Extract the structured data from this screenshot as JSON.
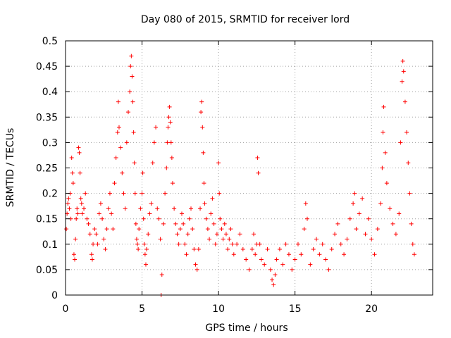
{
  "chart_data": {
    "type": "scatter",
    "title": "Day 080 of 2015, SRMTID for receiver lord",
    "xlabel": "GPS time / hours",
    "ylabel": "SRMTID / TECUs",
    "xlim": [
      0,
      24
    ],
    "ylim": [
      0,
      0.5
    ],
    "xticks": [
      0,
      5,
      10,
      15,
      20
    ],
    "xtick_labels": [
      "0",
      "5",
      "10",
      "15",
      "20"
    ],
    "yticks": [
      0,
      0.05,
      0.1,
      0.15,
      0.2,
      0.25,
      0.3,
      0.35,
      0.4,
      0.45,
      0.5
    ],
    "ytick_labels": [
      "0",
      "0.05",
      "0.1",
      "0.15",
      "0.2",
      "0.25",
      "0.3",
      "0.35",
      "0.4",
      "0.45",
      "0.5"
    ],
    "grid": true,
    "marker": "+",
    "color": "#ff0000",
    "series": [
      {
        "name": "SRMTID",
        "points": [
          [
            0.05,
            0.13
          ],
          [
            0.1,
            0.16
          ],
          [
            0.15,
            0.18
          ],
          [
            0.2,
            0.19
          ],
          [
            0.25,
            0.17
          ],
          [
            0.3,
            0.2
          ],
          [
            0.35,
            0.15
          ],
          [
            0.4,
            0.27
          ],
          [
            0.45,
            0.24
          ],
          [
            0.5,
            0.22
          ],
          [
            0.55,
            0.08
          ],
          [
            0.6,
            0.07
          ],
          [
            0.65,
            0.11
          ],
          [
            0.7,
            0.15
          ],
          [
            0.75,
            0.17
          ],
          [
            0.8,
            0.16
          ],
          [
            0.85,
            0.29
          ],
          [
            0.9,
            0.28
          ],
          [
            0.95,
            0.24
          ],
          [
            1.0,
            0.19
          ],
          [
            1.05,
            0.18
          ],
          [
            1.1,
            0.16
          ],
          [
            1.2,
            0.17
          ],
          [
            1.3,
            0.2
          ],
          [
            1.4,
            0.15
          ],
          [
            1.5,
            0.14
          ],
          [
            1.6,
            0.12
          ],
          [
            1.7,
            0.08
          ],
          [
            1.75,
            0.07
          ],
          [
            1.8,
            0.1
          ],
          [
            1.9,
            0.13
          ],
          [
            2.0,
            0.12
          ],
          [
            2.1,
            0.1
          ],
          [
            2.2,
            0.16
          ],
          [
            2.3,
            0.18
          ],
          [
            2.4,
            0.15
          ],
          [
            2.5,
            0.11
          ],
          [
            2.6,
            0.09
          ],
          [
            2.7,
            0.13
          ],
          [
            2.8,
            0.17
          ],
          [
            2.9,
            0.2
          ],
          [
            3.0,
            0.16
          ],
          [
            3.1,
            0.13
          ],
          [
            3.2,
            0.22
          ],
          [
            3.3,
            0.27
          ],
          [
            3.4,
            0.32
          ],
          [
            3.45,
            0.38
          ],
          [
            3.5,
            0.33
          ],
          [
            3.6,
            0.29
          ],
          [
            3.7,
            0.24
          ],
          [
            3.8,
            0.2
          ],
          [
            3.9,
            0.17
          ],
          [
            4.0,
            0.3
          ],
          [
            4.1,
            0.36
          ],
          [
            4.2,
            0.4
          ],
          [
            4.25,
            0.45
          ],
          [
            4.3,
            0.47
          ],
          [
            4.35,
            0.43
          ],
          [
            4.4,
            0.38
          ],
          [
            4.45,
            0.32
          ],
          [
            4.5,
            0.26
          ],
          [
            4.55,
            0.2
          ],
          [
            4.6,
            0.14
          ],
          [
            4.65,
            0.11
          ],
          [
            4.7,
            0.1
          ],
          [
            4.75,
            0.09
          ],
          [
            4.8,
            0.13
          ],
          [
            4.9,
            0.17
          ],
          [
            5.0,
            0.2
          ],
          [
            5.05,
            0.24
          ],
          [
            5.1,
            0.15
          ],
          [
            5.15,
            0.1
          ],
          [
            5.2,
            0.08
          ],
          [
            5.25,
            0.06
          ],
          [
            5.3,
            0.09
          ],
          [
            5.4,
            0.12
          ],
          [
            5.5,
            0.16
          ],
          [
            5.6,
            0.18
          ],
          [
            5.7,
            0.26
          ],
          [
            5.8,
            0.3
          ],
          [
            5.9,
            0.33
          ],
          [
            6.0,
            0.17
          ],
          [
            6.1,
            0.15
          ],
          [
            6.2,
            0.11
          ],
          [
            6.25,
            0.0
          ],
          [
            6.3,
            0.04
          ],
          [
            6.4,
            0.14
          ],
          [
            6.5,
            0.2
          ],
          [
            6.6,
            0.25
          ],
          [
            6.65,
            0.3
          ],
          [
            6.7,
            0.33
          ],
          [
            6.75,
            0.35
          ],
          [
            6.8,
            0.37
          ],
          [
            6.85,
            0.34
          ],
          [
            6.9,
            0.3
          ],
          [
            6.95,
            0.27
          ],
          [
            7.0,
            0.22
          ],
          [
            7.1,
            0.17
          ],
          [
            7.2,
            0.14
          ],
          [
            7.3,
            0.12
          ],
          [
            7.4,
            0.1
          ],
          [
            7.5,
            0.13
          ],
          [
            7.6,
            0.16
          ],
          [
            7.7,
            0.14
          ],
          [
            7.8,
            0.1
          ],
          [
            7.9,
            0.08
          ],
          [
            8.0,
            0.12
          ],
          [
            8.1,
            0.15
          ],
          [
            8.2,
            0.17
          ],
          [
            8.3,
            0.13
          ],
          [
            8.4,
            0.09
          ],
          [
            8.5,
            0.06
          ],
          [
            8.6,
            0.05
          ],
          [
            8.7,
            0.09
          ],
          [
            8.8,
            0.17
          ],
          [
            8.85,
            0.36
          ],
          [
            8.9,
            0.38
          ],
          [
            8.95,
            0.33
          ],
          [
            9.0,
            0.28
          ],
          [
            9.05,
            0.22
          ],
          [
            9.1,
            0.18
          ],
          [
            9.2,
            0.15
          ],
          [
            9.3,
            0.13
          ],
          [
            9.4,
            0.11
          ],
          [
            9.5,
            0.16
          ],
          [
            9.6,
            0.19
          ],
          [
            9.7,
            0.14
          ],
          [
            9.8,
            0.1
          ],
          [
            9.9,
            0.12
          ],
          [
            10.0,
            0.26
          ],
          [
            10.05,
            0.2
          ],
          [
            10.1,
            0.15
          ],
          [
            10.2,
            0.13
          ],
          [
            10.3,
            0.11
          ],
          [
            10.4,
            0.14
          ],
          [
            10.5,
            0.12
          ],
          [
            10.6,
            0.09
          ],
          [
            10.7,
            0.11
          ],
          [
            10.8,
            0.13
          ],
          [
            10.9,
            0.1
          ],
          [
            11.0,
            0.08
          ],
          [
            11.2,
            0.1
          ],
          [
            11.4,
            0.12
          ],
          [
            11.6,
            0.09
          ],
          [
            11.8,
            0.07
          ],
          [
            12.0,
            0.05
          ],
          [
            12.2,
            0.09
          ],
          [
            12.3,
            0.12
          ],
          [
            12.4,
            0.08
          ],
          [
            12.5,
            0.1
          ],
          [
            12.55,
            0.27
          ],
          [
            12.6,
            0.24
          ],
          [
            12.7,
            0.1
          ],
          [
            12.8,
            0.07
          ],
          [
            13.0,
            0.06
          ],
          [
            13.2,
            0.09
          ],
          [
            13.4,
            0.05
          ],
          [
            13.5,
            0.03
          ],
          [
            13.6,
            0.02
          ],
          [
            13.7,
            0.04
          ],
          [
            13.8,
            0.07
          ],
          [
            14.0,
            0.09
          ],
          [
            14.2,
            0.06
          ],
          [
            14.4,
            0.1
          ],
          [
            14.6,
            0.08
          ],
          [
            14.8,
            0.05
          ],
          [
            15.0,
            0.07
          ],
          [
            15.2,
            0.1
          ],
          [
            15.4,
            0.08
          ],
          [
            15.6,
            0.13
          ],
          [
            15.7,
            0.18
          ],
          [
            15.8,
            0.15
          ],
          [
            16.0,
            0.06
          ],
          [
            16.2,
            0.09
          ],
          [
            16.4,
            0.11
          ],
          [
            16.6,
            0.08
          ],
          [
            16.8,
            0.1
          ],
          [
            17.0,
            0.07
          ],
          [
            17.2,
            0.05
          ],
          [
            17.4,
            0.09
          ],
          [
            17.6,
            0.12
          ],
          [
            17.8,
            0.14
          ],
          [
            18.0,
            0.1
          ],
          [
            18.2,
            0.08
          ],
          [
            18.4,
            0.11
          ],
          [
            18.6,
            0.15
          ],
          [
            18.8,
            0.18
          ],
          [
            18.9,
            0.2
          ],
          [
            19.0,
            0.13
          ],
          [
            19.2,
            0.16
          ],
          [
            19.4,
            0.19
          ],
          [
            19.6,
            0.12
          ],
          [
            19.8,
            0.15
          ],
          [
            20.0,
            0.11
          ],
          [
            20.2,
            0.08
          ],
          [
            20.4,
            0.13
          ],
          [
            20.6,
            0.18
          ],
          [
            20.7,
            0.25
          ],
          [
            20.75,
            0.32
          ],
          [
            20.8,
            0.37
          ],
          [
            20.9,
            0.28
          ],
          [
            21.0,
            0.22
          ],
          [
            21.2,
            0.17
          ],
          [
            21.4,
            0.14
          ],
          [
            21.6,
            0.12
          ],
          [
            21.8,
            0.16
          ],
          [
            21.9,
            0.3
          ],
          [
            22.0,
            0.42
          ],
          [
            22.05,
            0.46
          ],
          [
            22.1,
            0.44
          ],
          [
            22.2,
            0.38
          ],
          [
            22.3,
            0.32
          ],
          [
            22.4,
            0.26
          ],
          [
            22.5,
            0.2
          ],
          [
            22.6,
            0.14
          ],
          [
            22.7,
            0.1
          ],
          [
            22.8,
            0.08
          ]
        ]
      }
    ]
  }
}
